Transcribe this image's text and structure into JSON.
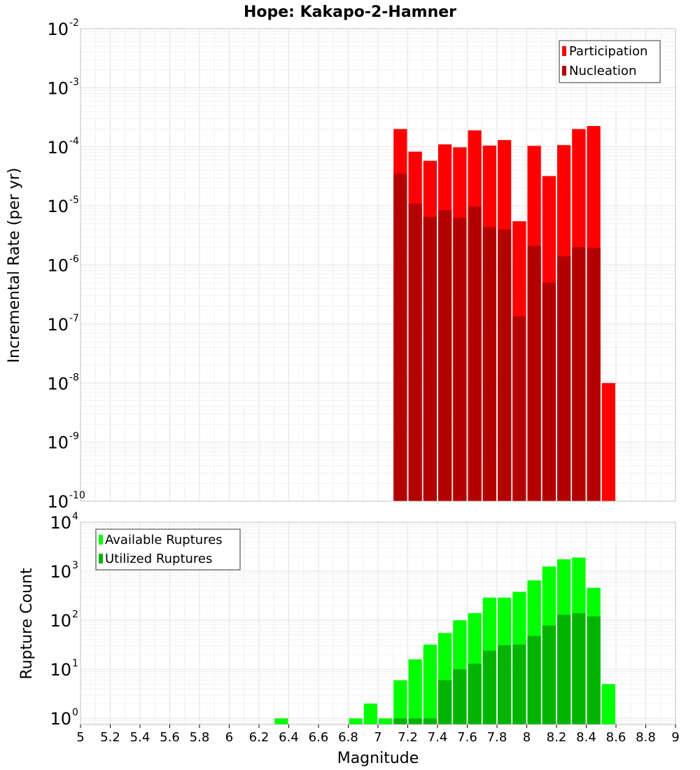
{
  "chart_data": [
    {
      "type": "bar",
      "title": "Hope: Kakapo-2-Hamner",
      "xlabel": "Magnitude",
      "ylabel": "Incremental Rate (per yr)",
      "yscale": "log",
      "xlim": [
        5,
        9
      ],
      "ylim": [
        1e-10,
        0.01
      ],
      "ytick_exponents": [
        -10,
        -9,
        -8,
        -7,
        -6,
        -5,
        -4,
        -3,
        -2
      ],
      "grid": true,
      "legend_position": "top-right",
      "bin_width": 0.1,
      "series": [
        {
          "name": "Participation",
          "color": "#ff0000",
          "x": [
            7.15,
            7.25,
            7.35,
            7.45,
            7.55,
            7.65,
            7.75,
            7.85,
            7.95,
            8.05,
            8.15,
            8.25,
            8.35,
            8.45,
            8.55
          ],
          "values": [
            0.0002,
            8.3e-05,
            5.8e-05,
            0.00011,
            9.8e-05,
            0.00019,
            0.000105,
            0.00013,
            5.5e-06,
            0.000104,
            3.2e-05,
            0.000107,
            0.0002,
            0.000225,
            1e-08
          ]
        },
        {
          "name": "Nucleation",
          "color": "#b30000",
          "x": [
            7.15,
            7.25,
            7.35,
            7.45,
            7.55,
            7.65,
            7.75,
            7.85,
            7.95,
            8.05,
            8.15,
            8.25,
            8.35,
            8.45
          ],
          "values": [
            3.5e-05,
            1.1e-05,
            6.5e-06,
            8.5e-06,
            6.3e-06,
            9.7e-06,
            4.4e-06,
            4e-06,
            1.35e-07,
            2.1e-06,
            5e-07,
            1.4e-06,
            2e-06,
            1.95e-06
          ]
        }
      ]
    },
    {
      "type": "bar",
      "xlabel": "Magnitude",
      "ylabel": "Rupture Count",
      "yscale": "log",
      "xlim": [
        5,
        9
      ],
      "ylim": [
        0.75,
        10000
      ],
      "ytick_exponents": [
        0,
        1,
        2,
        3,
        4
      ],
      "xticks": [
        "5",
        "5.2",
        "5.4",
        "5.6",
        "5.8",
        "6",
        "6.2",
        "6.4",
        "6.6",
        "6.8",
        "7",
        "7.2",
        "7.4",
        "7.6",
        "7.8",
        "8",
        "8.2",
        "8.4",
        "8.6",
        "8.8",
        "9"
      ],
      "grid": true,
      "legend_position": "top-left",
      "bin_width": 0.1,
      "series": [
        {
          "name": "Available Ruptures",
          "color": "#00ff00",
          "x": [
            6.35,
            6.85,
            6.95,
            7.05,
            7.15,
            7.25,
            7.35,
            7.45,
            7.55,
            7.65,
            7.75,
            7.85,
            7.95,
            8.05,
            8.15,
            8.25,
            8.35,
            8.45,
            8.55
          ],
          "values": [
            1,
            1,
            2,
            1,
            6,
            16,
            32,
            55,
            100,
            140,
            290,
            290,
            380,
            650,
            1250,
            1750,
            1900,
            460,
            5
          ]
        },
        {
          "name": "Utilized Ruptures",
          "color": "#00b300",
          "x": [
            7.15,
            7.25,
            7.35,
            7.45,
            7.55,
            7.65,
            7.75,
            7.85,
            7.95,
            8.05,
            8.15,
            8.25,
            8.35,
            8.45
          ],
          "values": [
            1,
            1,
            1,
            6,
            10,
            13,
            24,
            31,
            32,
            48,
            78,
            130,
            140,
            120
          ]
        }
      ]
    }
  ]
}
